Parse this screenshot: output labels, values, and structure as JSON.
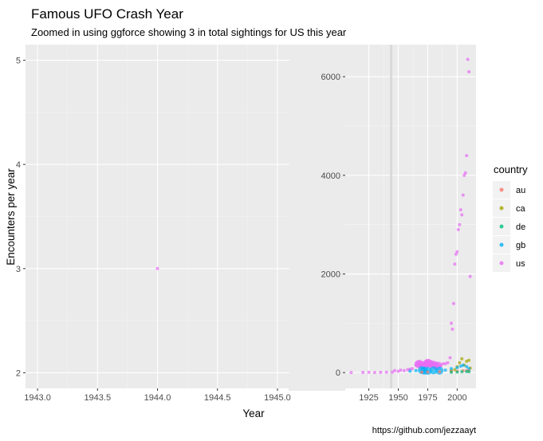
{
  "chart_data": {
    "type": "scatter",
    "title": "Famous UFO Crash Year",
    "subtitle": "Zoomed in using ggforce showing 3 in total sightings for US this year",
    "xlabel": "Year",
    "ylabel": "Encounters per year",
    "caption": "https://github.com/jezzaayt",
    "legend": {
      "title": "country",
      "placement": "right",
      "entries": [
        {
          "label": "au",
          "color": "#F8766D"
        },
        {
          "label": "ca",
          "color": "#A3A500"
        },
        {
          "label": "de",
          "color": "#00BF7D"
        },
        {
          "label": "gb",
          "color": "#00B0F6"
        },
        {
          "label": "us",
          "color": "#E76BF3"
        }
      ]
    },
    "zoom_panel": {
      "xlim": [
        1942.9,
        1945.1
      ],
      "ylim": [
        1.85,
        5.15
      ],
      "xticks": [
        "1943.0",
        "1943.5",
        "1944.0",
        "1944.5",
        "1945.0"
      ],
      "xtick_values": [
        1943.0,
        1943.5,
        1944.0,
        1944.5,
        1945.0
      ],
      "yticks": [
        "2",
        "3",
        "4",
        "5"
      ],
      "ytick_values": [
        2,
        3,
        4,
        5
      ],
      "points": [
        {
          "country": "us",
          "x": 1944,
          "y": 3
        }
      ]
    },
    "full_panel": {
      "xlim": [
        1905,
        2016
      ],
      "ylim": [
        -320,
        6650
      ],
      "xticks": [
        "1925",
        "1950",
        "1975",
        "2000"
      ],
      "xtick_values": [
        1925,
        1950,
        1975,
        2000
      ],
      "yticks": [
        "0",
        "2000",
        "4000",
        "6000"
      ],
      "ytick_values": [
        0,
        2000,
        4000,
        6000
      ],
      "zoom_band": [
        1943,
        1945
      ],
      "series": [
        {
          "name": "us",
          "points": [
            [
              1910,
              2
            ],
            [
              1920,
              3
            ],
            [
              1925,
              5
            ],
            [
              1930,
              2
            ],
            [
              1935,
              6
            ],
            [
              1940,
              8
            ],
            [
              1945,
              10
            ],
            [
              1947,
              40
            ],
            [
              1950,
              25
            ],
            [
              1952,
              50
            ],
            [
              1955,
              40
            ],
            [
              1958,
              60
            ],
            [
              1960,
              70
            ],
            [
              1962,
              80
            ],
            [
              1965,
              150
            ],
            [
              1967,
              170
            ],
            [
              1968,
              180
            ],
            [
              1970,
              150
            ],
            [
              1972,
              140
            ],
            [
              1974,
              180
            ],
            [
              1975,
              200
            ],
            [
              1976,
              190
            ],
            [
              1978,
              170
            ],
            [
              1980,
              160
            ],
            [
              1982,
              140
            ],
            [
              1984,
              140
            ],
            [
              1986,
              140
            ],
            [
              1988,
              180
            ],
            [
              1990,
              180
            ],
            [
              1992,
              200
            ],
            [
              1994,
              300
            ],
            [
              1995,
              1000
            ],
            [
              1996,
              880
            ],
            [
              1997,
              1400
            ],
            [
              1998,
              2200
            ],
            [
              1999,
              2400
            ],
            [
              2000,
              2450
            ],
            [
              2001,
              2900
            ],
            [
              2002,
              3000
            ],
            [
              2003,
              3300
            ],
            [
              2004,
              3200
            ],
            [
              2005,
              3600
            ],
            [
              2006,
              4000
            ],
            [
              2007,
              4050
            ],
            [
              2008,
              4400
            ],
            [
              2009,
              6350
            ],
            [
              2010,
              6100
            ],
            [
              2011,
              1950
            ]
          ]
        },
        {
          "name": "ca",
          "points": [
            [
              1995,
              40
            ],
            [
              1998,
              60
            ],
            [
              2000,
              120
            ],
            [
              2002,
              200
            ],
            [
              2004,
              280
            ],
            [
              2006,
              150
            ],
            [
              2008,
              230
            ],
            [
              2010,
              250
            ],
            [
              2011,
              90
            ]
          ]
        },
        {
          "name": "gb",
          "points": [
            [
              1960,
              30
            ],
            [
              1965,
              40
            ],
            [
              1970,
              50
            ],
            [
              1972,
              40
            ],
            [
              1975,
              35
            ],
            [
              1980,
              45
            ],
            [
              1985,
              40
            ],
            [
              1990,
              50
            ],
            [
              1995,
              80
            ],
            [
              2000,
              100
            ],
            [
              2003,
              130
            ],
            [
              2005,
              150
            ],
            [
              2008,
              120
            ],
            [
              2010,
              80
            ]
          ]
        },
        {
          "name": "au",
          "points": [
            [
              1970,
              10
            ],
            [
              1975,
              12
            ],
            [
              1985,
              15
            ],
            [
              1995,
              20
            ],
            [
              2000,
              25
            ],
            [
              2005,
              35
            ],
            [
              2008,
              40
            ],
            [
              2010,
              30
            ]
          ]
        },
        {
          "name": "de",
          "points": [
            [
              1995,
              8
            ],
            [
              2000,
              12
            ],
            [
              2004,
              18
            ],
            [
              2008,
              22
            ],
            [
              2010,
              20
            ]
          ]
        }
      ]
    }
  }
}
